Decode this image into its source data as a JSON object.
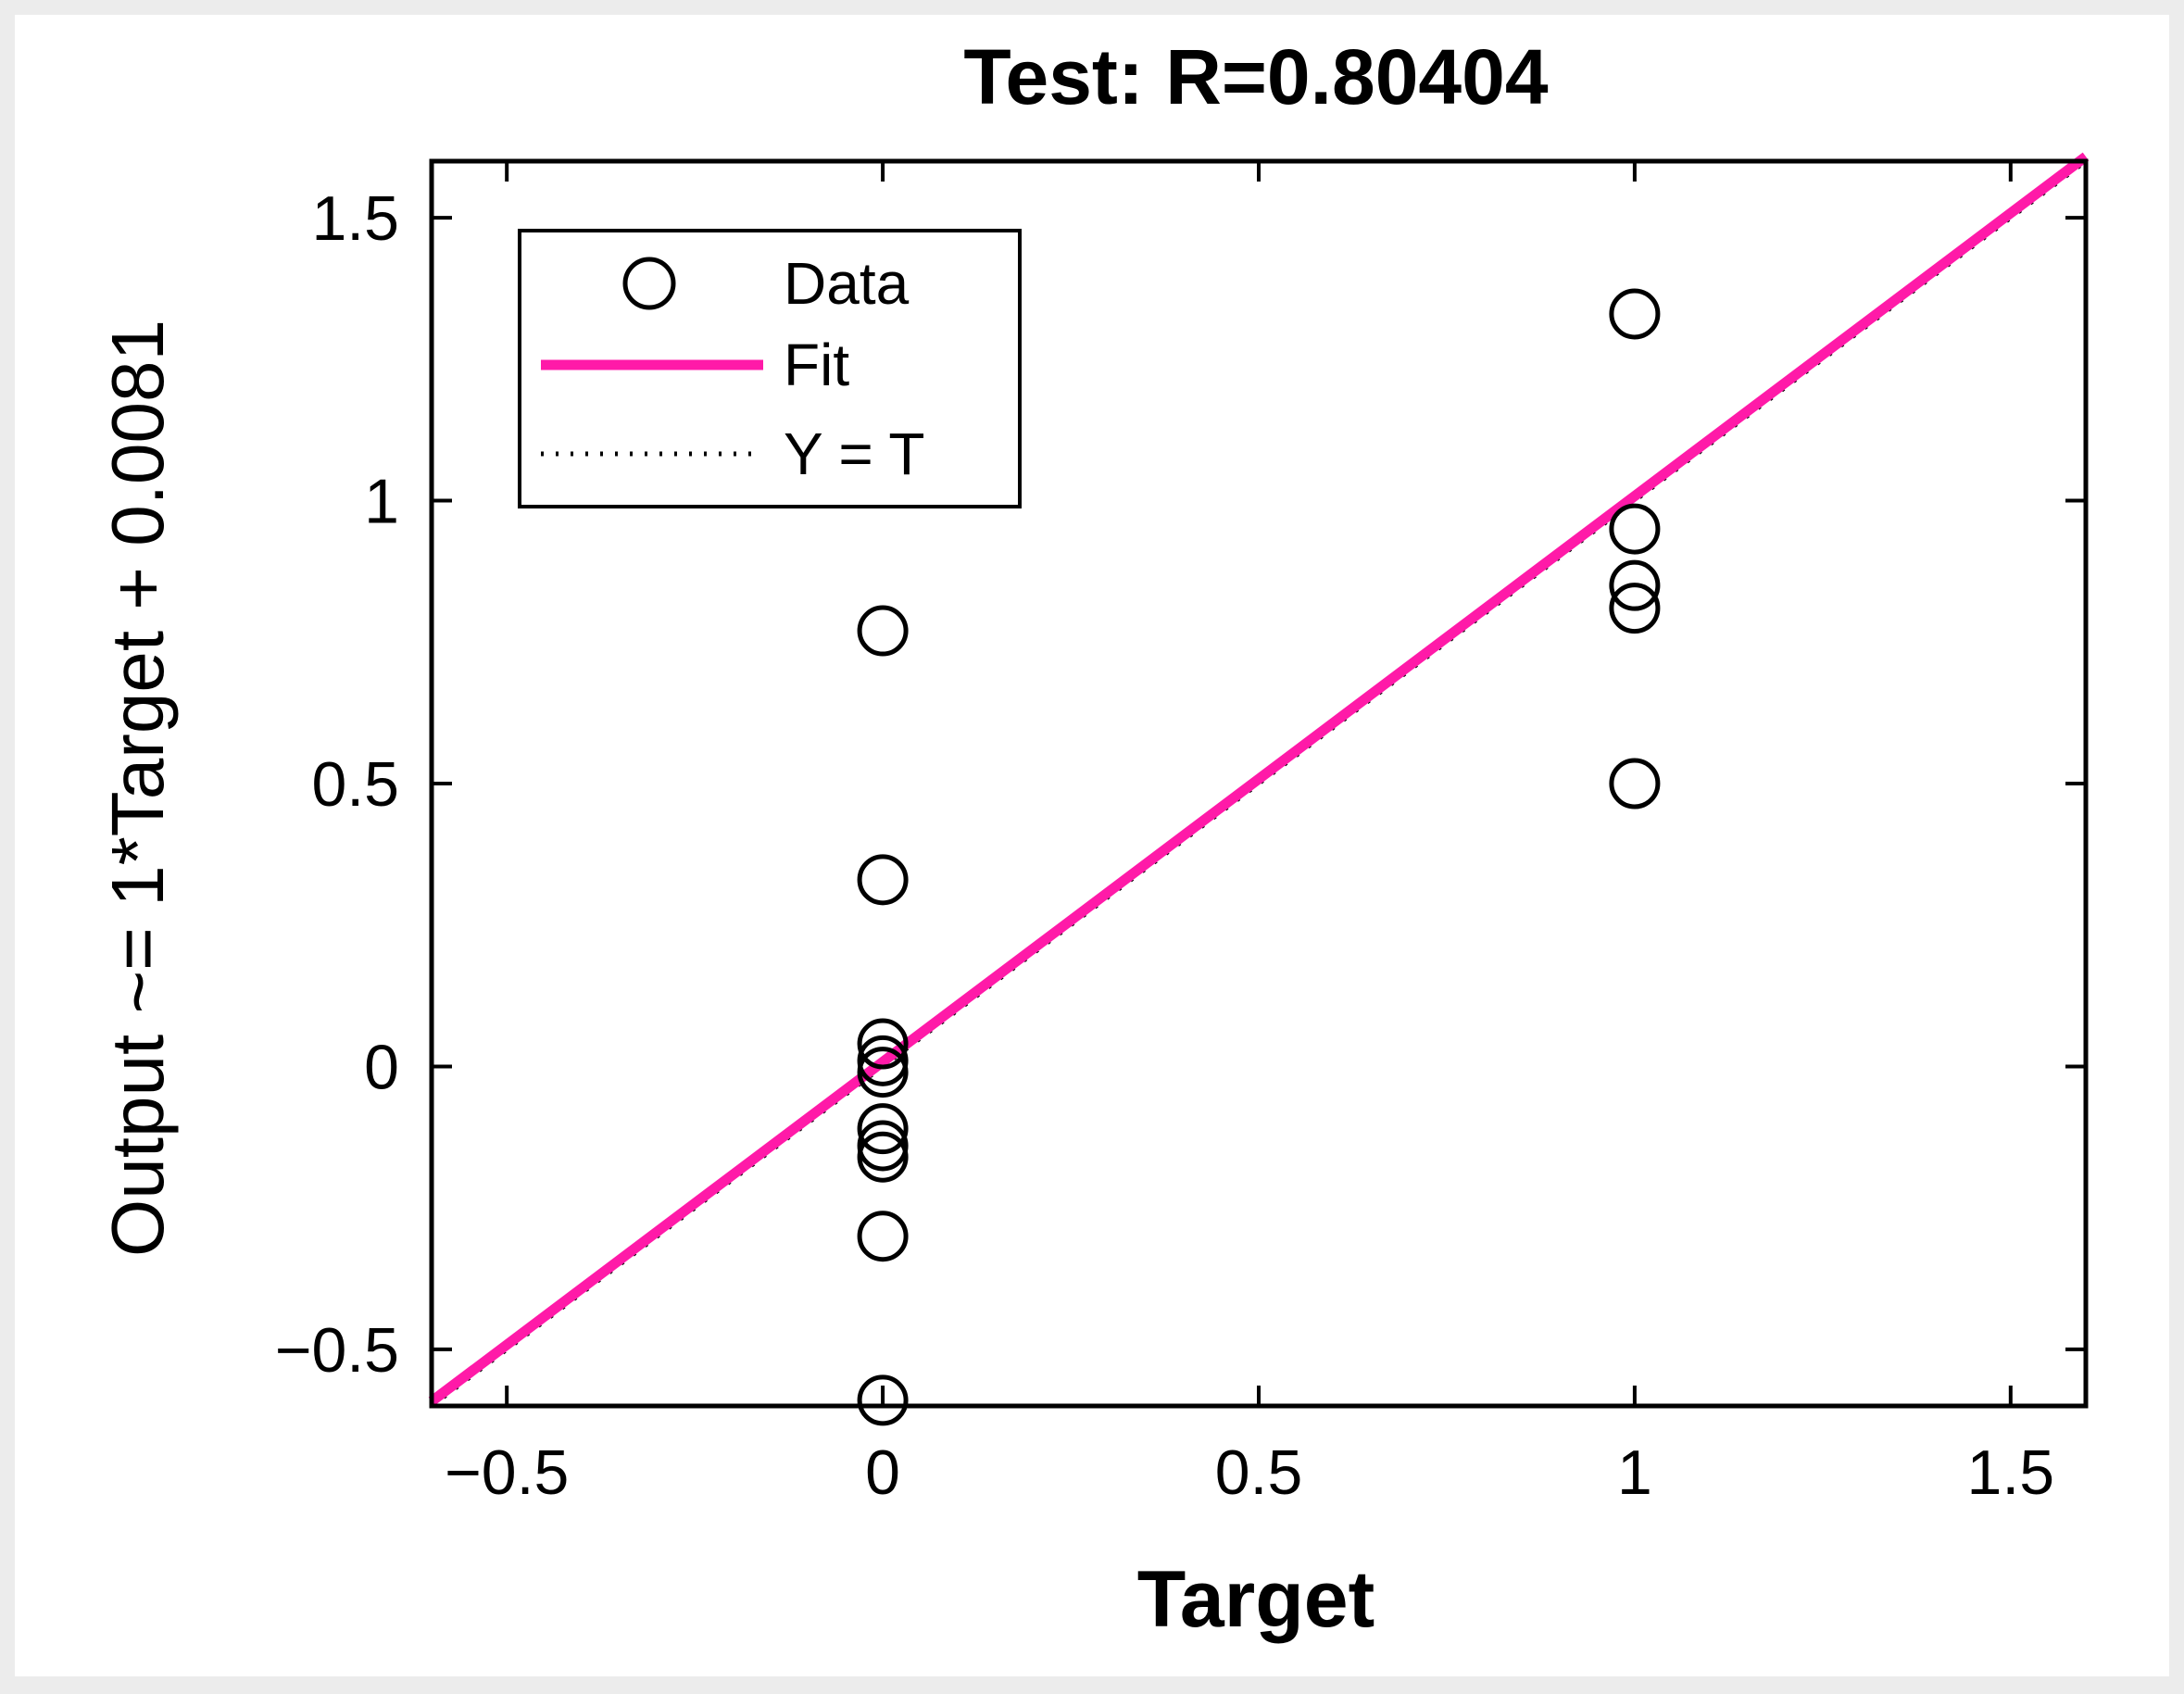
{
  "chart_data": {
    "type": "scatter",
    "title": "Test: R=0.80404",
    "xlabel": "Target",
    "ylabel": "Output ~= 1*Target + 0.0081",
    "xlim": [
      -0.6,
      1.6
    ],
    "ylim": [
      -0.6,
      1.6
    ],
    "xticks": [
      -0.5,
      0,
      0.5,
      1,
      1.5
    ],
    "yticks": [
      -0.5,
      0,
      0.5,
      1,
      1.5
    ],
    "xtick_labels": [
      "−0.5",
      "0",
      "0.5",
      "1",
      "1.5"
    ],
    "ytick_labels": [
      "−0.5",
      "0",
      "0.5",
      "1",
      "1.5"
    ],
    "grid": false,
    "legend_position": "top-left",
    "legend": [
      {
        "label": "Data",
        "marker": "circle"
      },
      {
        "label": "Fit",
        "line": "solid"
      },
      {
        "label": "Y = T",
        "line": "dotted"
      }
    ],
    "fit": {
      "slope": 1,
      "intercept": 0.0081,
      "color": "#ff1aa8"
    },
    "identity": {
      "slope": 1,
      "intercept": 0,
      "color": "#000000"
    },
    "series": [
      {
        "name": "Data",
        "color": "#000000",
        "points": [
          {
            "x": 0,
            "y": 0.77
          },
          {
            "x": 0,
            "y": 0.33
          },
          {
            "x": 0,
            "y": 0.04
          },
          {
            "x": 0,
            "y": 0.01
          },
          {
            "x": 0,
            "y": -0.01
          },
          {
            "x": 0,
            "y": -0.11
          },
          {
            "x": 0,
            "y": -0.14
          },
          {
            "x": 0,
            "y": -0.16
          },
          {
            "x": 0,
            "y": -0.3
          },
          {
            "x": 0,
            "y": -0.59
          },
          {
            "x": 1,
            "y": 1.33
          },
          {
            "x": 1,
            "y": 0.95
          },
          {
            "x": 1,
            "y": 0.85
          },
          {
            "x": 1,
            "y": 0.81
          },
          {
            "x": 1,
            "y": 0.5
          }
        ]
      }
    ]
  }
}
